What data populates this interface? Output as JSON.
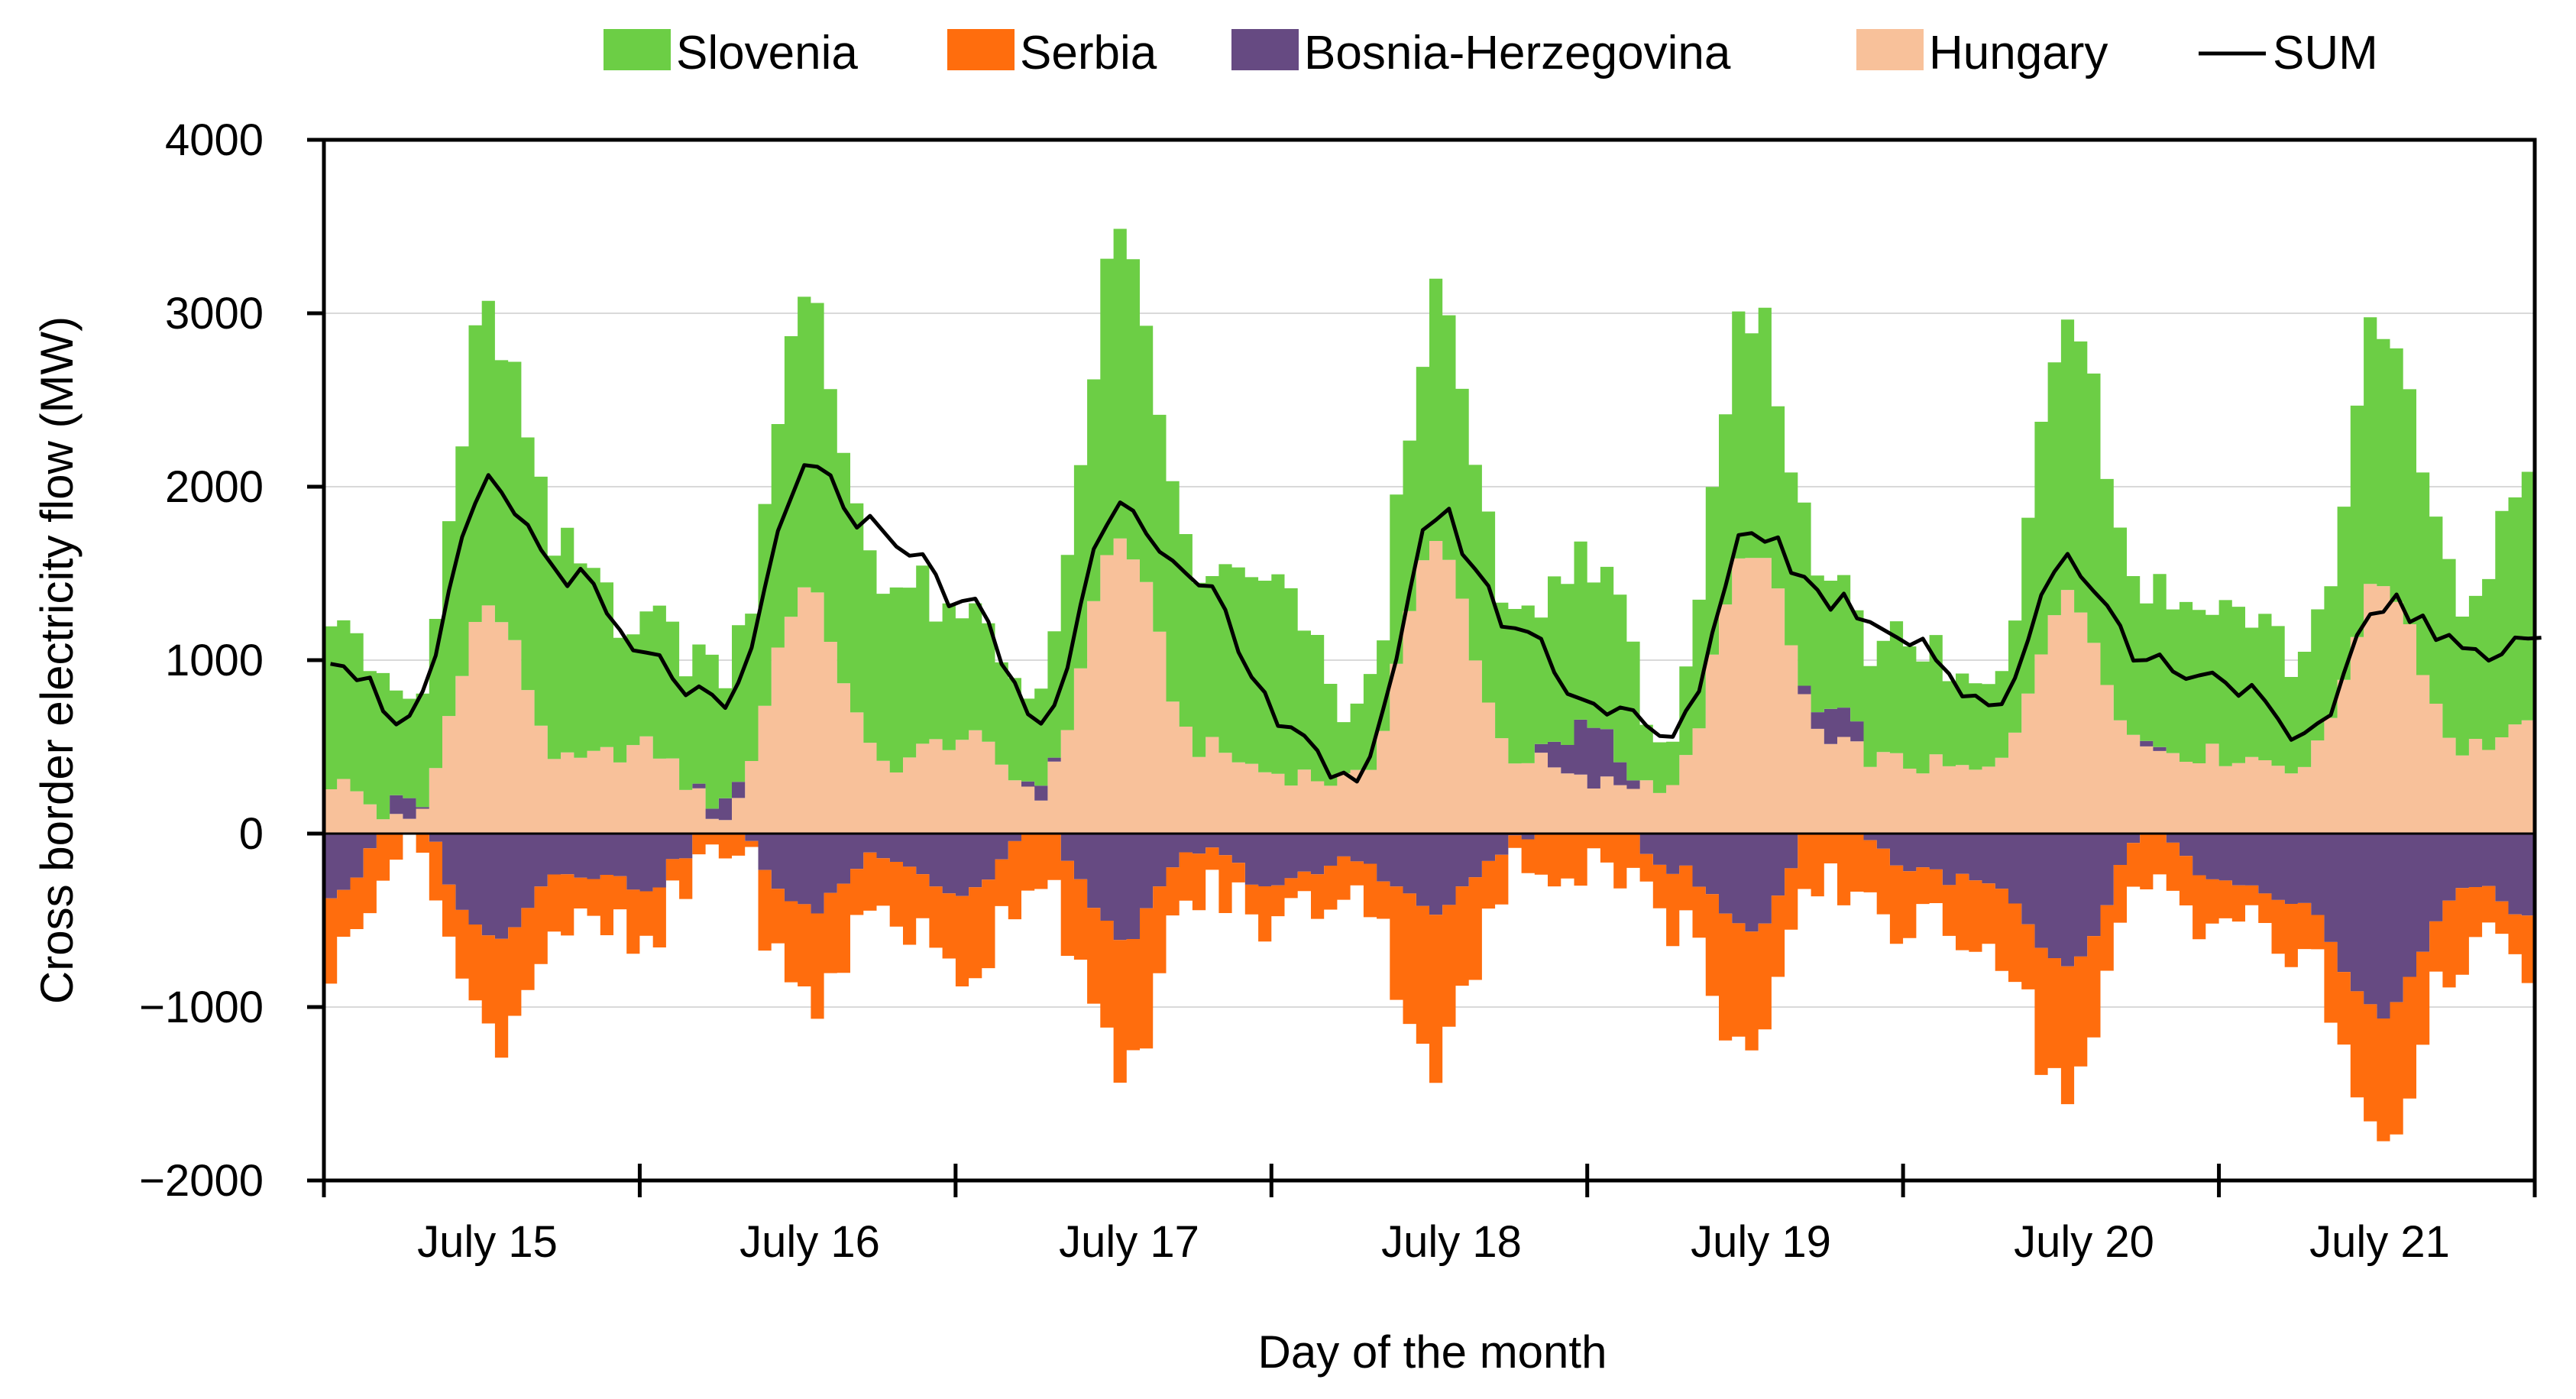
{
  "chart_data": {
    "type": "area",
    "stacked": true,
    "title": "",
    "xlabel": "Day of the month",
    "ylabel": "Cross border electricity flow (MW)",
    "ylim": [
      -2000,
      4000
    ],
    "yticks": [
      4000,
      3000,
      2000,
      1000,
      0,
      -1000,
      -2000
    ],
    "ytick_labels": [
      "4000",
      "3000",
      "2000",
      "1000",
      "0",
      "−1000",
      "−2000"
    ],
    "xlim_days": [
      0,
      7
    ],
    "x_unit": "days since start of July 15 (hourly resolution)",
    "day_labels": [
      "July 15",
      "July 16",
      "July 17",
      "July 18",
      "July 19",
      "July 20",
      "July 21"
    ],
    "legend_position": "top-center",
    "gridlines": "horizontal",
    "colors": {
      "Slovenia": "#6cce45",
      "Serbia": "#ff6d0d",
      "Bosnia-Herzegovina": "#664a82",
      "Hungary": "#f8c19a",
      "SUM": "#000000"
    },
    "series": [
      {
        "name": "Slovenia",
        "kind": "stacked-area"
      },
      {
        "name": "Serbia",
        "kind": "stacked-area"
      },
      {
        "name": "Bosnia-Herzegovina",
        "kind": "stacked-area"
      },
      {
        "name": "Hungary",
        "kind": "stacked-area"
      },
      {
        "name": "SUM",
        "kind": "line"
      }
    ],
    "profile_points_x_days": [
      0,
      0.25,
      0.5,
      0.75,
      1,
      1.25,
      1.5,
      1.75,
      2,
      2.25,
      2.5,
      2.75,
      3,
      3.25,
      3.5,
      3.75,
      4,
      4.25,
      4.5,
      4.75,
      5,
      5.25,
      5.5,
      5.75,
      6,
      6.25,
      6.5,
      6.75,
      7
    ],
    "hungary_profile": [
      300,
      50,
      1300,
      400,
      500,
      100,
      1400,
      400,
      550,
      250,
      1700,
      500,
      350,
      300,
      1650,
      450,
      280,
      300,
      1650,
      500,
      400,
      350,
      1350,
      500,
      450,
      400,
      1450,
      500,
      600
    ],
    "slovenia_profile": [
      1100,
      550,
      1650,
      1150,
      750,
      800,
      1600,
      1100,
      650,
      600,
      1650,
      1000,
      1050,
      350,
      1350,
      800,
      1000,
      300,
      1350,
      800,
      650,
      450,
      1700,
      900,
      900,
      650,
      1450,
      850,
      1500
    ],
    "bosnia_profile": [
      -350,
      100,
      -600,
      -200,
      -300,
      100,
      -450,
      -100,
      -350,
      50,
      -600,
      -100,
      -300,
      -150,
      -450,
      -50,
      300,
      -200,
      -550,
      200,
      -200,
      -300,
      -800,
      0,
      -300,
      -450,
      -1050,
      -300,
      -500
    ],
    "serbia_profile": [
      -400,
      -50,
      -550,
      -300,
      -350,
      -60,
      -550,
      -300,
      -450,
      -250,
      -800,
      -250,
      -200,
      -150,
      -850,
      -200,
      -150,
      -300,
      -700,
      -300,
      -350,
      -300,
      -700,
      -300,
      -200,
      -300,
      -700,
      -350,
      -300
    ],
    "sum_profile": [
      1050,
      650,
      2000,
      1500,
      1000,
      700,
      2080,
      1750,
      1350,
      650,
      1950,
      1400,
      700,
      250,
      1850,
      1200,
      750,
      550,
      1780,
      1350,
      1150,
      700,
      1600,
      1000,
      900,
      500,
      1350,
      1050,
      1150
    ]
  }
}
